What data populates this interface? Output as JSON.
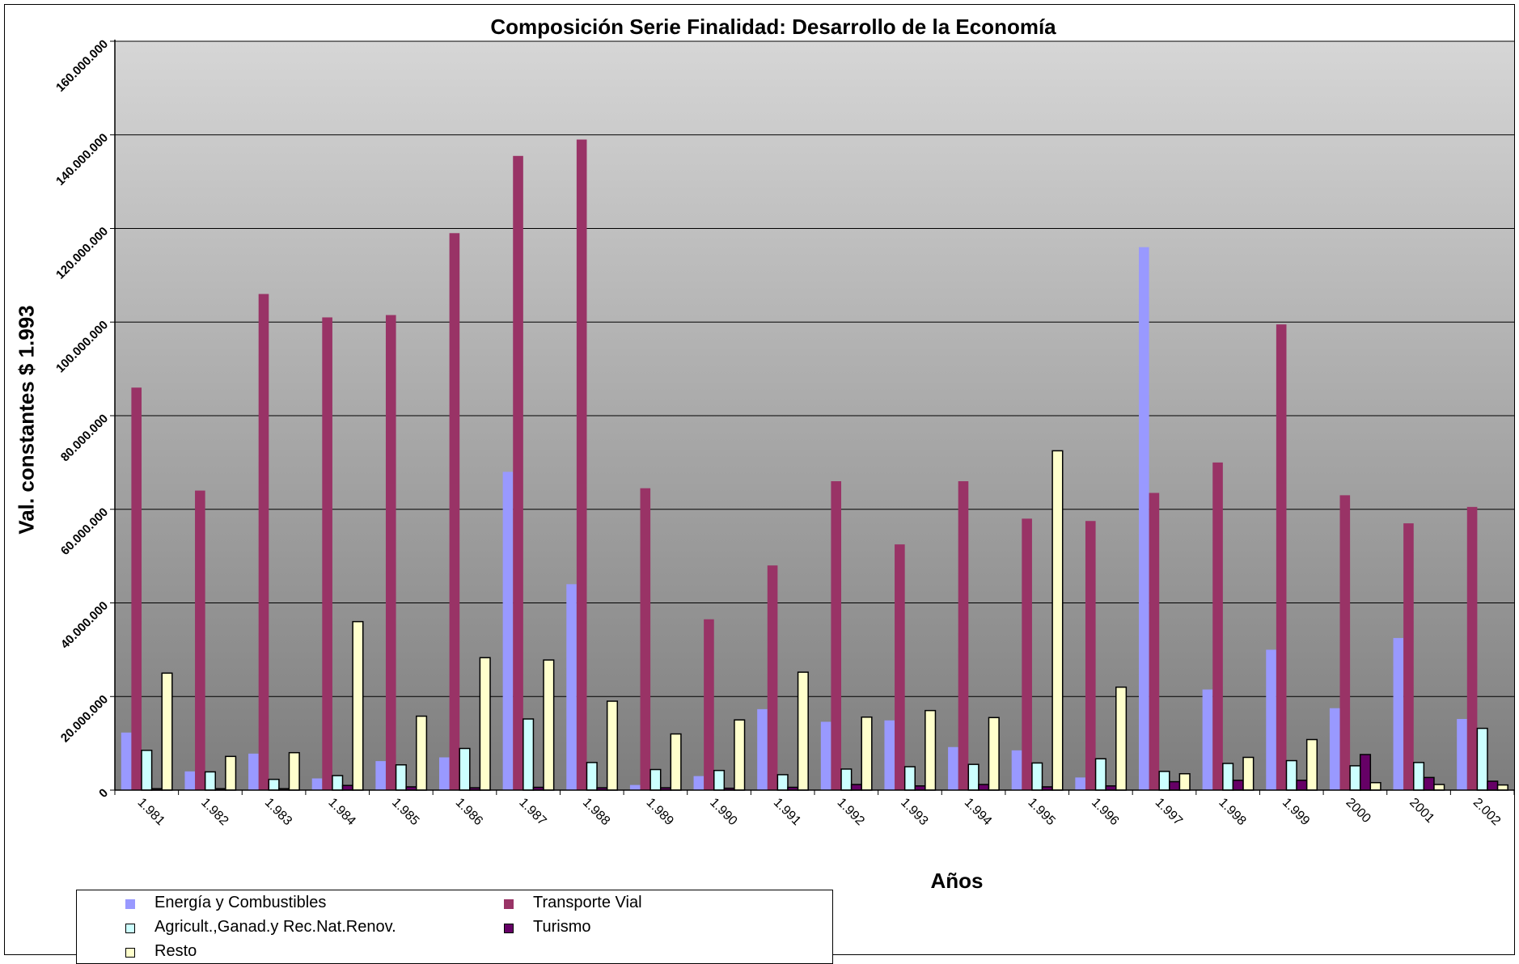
{
  "chart_data": {
    "type": "bar",
    "title": "Composición Serie Finalidad: Desarrollo de la Economía",
    "xlabel": "Años",
    "ylabel": "Val. constantes $ 1.993",
    "ylim": [
      0,
      160000000
    ],
    "yticks": [
      "0",
      "20.000.000",
      "40.000.000",
      "60.000.000",
      "80.000.000",
      "100.000.000",
      "120.000.000",
      "140.000.000",
      "160.000.000"
    ],
    "categories": [
      "1.981",
      "1.982",
      "1.983",
      "1.984",
      "1.985",
      "1.986",
      "1.987",
      "1.988",
      "1.989",
      "1.990",
      "1.991",
      "1.992",
      "1.993",
      "1.994",
      "1.995",
      "1.996",
      "1.997",
      "1.998",
      "1.999",
      "2000",
      "2001",
      "2.002"
    ],
    "grid": true,
    "legend_position": "bottom-left",
    "series": [
      {
        "name": "Energía y Combustibles",
        "color": "#9999ff",
        "border": "none",
        "values": [
          12300000,
          4000000,
          7800000,
          2500000,
          6200000,
          7000000,
          68000000,
          44000000,
          1100000,
          3000000,
          17300000,
          14600000,
          14900000,
          9200000,
          8500000,
          2700000,
          116000000,
          21500000,
          30000000,
          17500000,
          32500000,
          15200000
        ]
      },
      {
        "name": "Transporte Vial",
        "color": "#993366",
        "border": "none",
        "values": [
          86000000,
          64000000,
          106000000,
          101000000,
          101500000,
          119000000,
          135500000,
          139000000,
          64500000,
          36500000,
          48000000,
          66000000,
          52500000,
          66000000,
          58000000,
          57500000,
          63500000,
          70000000,
          99500000,
          63000000,
          57000000,
          60500000
        ]
      },
      {
        "name": "Agricult.,Ganad.y Rec.Nat.Renov.",
        "color": "#ccffff",
        "border": "#000000",
        "values": [
          8500000,
          3900000,
          2300000,
          3100000,
          5400000,
          8900000,
          15200000,
          5900000,
          4400000,
          4200000,
          3300000,
          4500000,
          5000000,
          5500000,
          5800000,
          6700000,
          4000000,
          5700000,
          6300000,
          5200000,
          5900000,
          13200000
        ]
      },
      {
        "name": "Turismo",
        "color": "#660066",
        "border": "#000000",
        "values": [
          300000,
          300000,
          300000,
          1000000,
          700000,
          500000,
          600000,
          500000,
          500000,
          400000,
          600000,
          1200000,
          900000,
          1200000,
          700000,
          900000,
          1800000,
          2100000,
          2100000,
          7600000,
          2700000,
          1900000
        ]
      },
      {
        "name": "Resto",
        "color": "#ffffcc",
        "border": "#000000",
        "values": [
          25000000,
          7200000,
          8000000,
          36000000,
          15800000,
          28300000,
          27800000,
          19000000,
          12000000,
          15000000,
          25200000,
          15600000,
          17000000,
          15500000,
          72500000,
          22000000,
          3500000,
          7000000,
          10800000,
          1600000,
          1200000,
          1100000
        ]
      }
    ]
  }
}
